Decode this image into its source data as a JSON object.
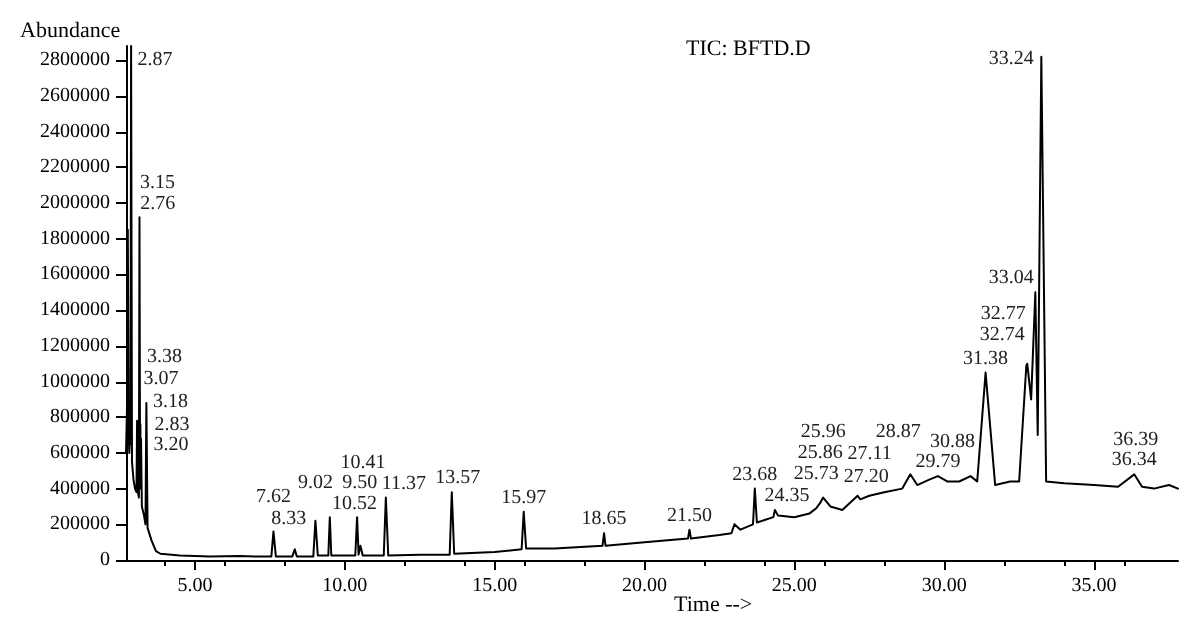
{
  "chart_data": {
    "type": "line",
    "title": "TIC: BFTD.D",
    "xlabel": "Time -->",
    "ylabel": "Abundance",
    "x": [
      2.7,
      2.74,
      2.76,
      2.79,
      2.81,
      2.83,
      2.85,
      2.87,
      2.9,
      2.95,
      3.0,
      3.05,
      3.07,
      3.1,
      3.13,
      3.15,
      3.17,
      3.18,
      3.19,
      3.2,
      3.23,
      3.3,
      3.35,
      3.38,
      3.42,
      3.55,
      3.7,
      3.85,
      4.5,
      5.5,
      6.5,
      7.0,
      7.55,
      7.62,
      7.7,
      8.25,
      8.33,
      8.4,
      8.95,
      9.02,
      9.1,
      9.45,
      9.5,
      9.55,
      10.35,
      10.41,
      10.46,
      10.52,
      10.6,
      11.3,
      11.37,
      11.45,
      12.5,
      13.5,
      13.57,
      13.65,
      15.0,
      15.9,
      15.97,
      16.05,
      17.0,
      18.6,
      18.65,
      18.7,
      20.0,
      21.45,
      21.5,
      21.55,
      22.5,
      22.9,
      23.0,
      23.2,
      23.62,
      23.68,
      23.75,
      24.3,
      24.35,
      24.45,
      25.0,
      25.5,
      25.73,
      25.86,
      25.96,
      26.2,
      26.6,
      27.11,
      27.2,
      27.5,
      28.0,
      28.6,
      28.87,
      29.1,
      29.5,
      29.79,
      30.1,
      30.5,
      30.88,
      31.1,
      31.38,
      31.7,
      32.2,
      32.5,
      32.74,
      32.77,
      32.9,
      33.04,
      33.12,
      33.24,
      33.4,
      34.0,
      35.0,
      35.8,
      36.34,
      36.6,
      37.0,
      37.5,
      37.8
    ],
    "series": [
      {
        "color": "#000000",
        "values": [
          600000,
          900000,
          1850000,
          700000,
          600000,
          680000,
          650000,
          2880000,
          550000,
          450000,
          400000,
          380000,
          780000,
          380000,
          350000,
          1920000,
          400000,
          760000,
          420000,
          680000,
          300000,
          250000,
          200000,
          880000,
          180000,
          110000,
          50000,
          35000,
          25000,
          20000,
          22000,
          20000,
          20000,
          160000,
          20000,
          20000,
          60000,
          20000,
          20000,
          220000,
          25000,
          25000,
          240000,
          25000,
          25000,
          240000,
          30000,
          80000,
          25000,
          25000,
          350000,
          25000,
          30000,
          30000,
          380000,
          35000,
          45000,
          60000,
          270000,
          65000,
          65000,
          80000,
          150000,
          80000,
          100000,
          120000,
          170000,
          120000,
          140000,
          150000,
          200000,
          170000,
          200000,
          400000,
          210000,
          240000,
          280000,
          250000,
          240000,
          260000,
          290000,
          320000,
          350000,
          300000,
          280000,
          360000,
          340000,
          360000,
          380000,
          400000,
          480000,
          420000,
          450000,
          470000,
          440000,
          440000,
          470000,
          440000,
          1050000,
          420000,
          440000,
          440000,
          1090000,
          1100000,
          900000,
          1500000,
          700000,
          2820000,
          440000,
          430000,
          420000,
          410000,
          480000,
          410000,
          400000,
          420000,
          400000
        ]
      }
    ],
    "xlim": [
      2.7,
      37.8
    ],
    "xticks": [
      {
        "value": 5,
        "label": "5.00"
      },
      {
        "value": 10,
        "label": "10.00"
      },
      {
        "value": 15,
        "label": "15.00"
      },
      {
        "value": 20,
        "label": "20.00"
      },
      {
        "value": 25,
        "label": "25.00"
      },
      {
        "value": 30,
        "label": "30.00"
      },
      {
        "value": 35,
        "label": "35.00"
      }
    ],
    "ylim": [
      0,
      2880000
    ],
    "yticks": [
      0,
      200000,
      400000,
      600000,
      800000,
      1000000,
      1200000,
      1400000,
      1600000,
      1800000,
      2000000,
      2200000,
      2400000,
      2600000,
      2800000
    ],
    "grid": false,
    "marker": "none",
    "line_style": "solid",
    "annotations": [
      {
        "text": "2.87",
        "x": 2.87,
        "y": 2880000
      },
      {
        "text": "3.15",
        "x": 3.15,
        "y": 1920000
      },
      {
        "text": "2.76",
        "x": 2.76,
        "y": 1850000
      },
      {
        "text": "3.38",
        "x": 3.38,
        "y": 880000
      },
      {
        "text": "3.07",
        "x": 3.07,
        "y": 780000
      },
      {
        "text": "3.18",
        "x": 3.18,
        "y": 760000
      },
      {
        "text": "2.83",
        "x": 2.83,
        "y": 680000
      },
      {
        "text": "3.20",
        "x": 3.2,
        "y": 680000
      },
      {
        "text": "7.62",
        "x": 7.62,
        "y": 160000
      },
      {
        "text": "8.33",
        "x": 8.33,
        "y": 60000
      },
      {
        "text": "9.02",
        "x": 9.02,
        "y": 220000
      },
      {
        "text": "9.50",
        "x": 9.5,
        "y": 240000
      },
      {
        "text": "10.41",
        "x": 10.41,
        "y": 240000
      },
      {
        "text": "10.52",
        "x": 10.52,
        "y": 80000
      },
      {
        "text": "11.37",
        "x": 11.37,
        "y": 350000
      },
      {
        "text": "13.57",
        "x": 13.57,
        "y": 380000
      },
      {
        "text": "15.97",
        "x": 15.97,
        "y": 270000
      },
      {
        "text": "18.65",
        "x": 18.65,
        "y": 150000
      },
      {
        "text": "21.50",
        "x": 21.5,
        "y": 170000
      },
      {
        "text": "23.68",
        "x": 23.68,
        "y": 400000
      },
      {
        "text": "24.35",
        "x": 24.35,
        "y": 280000
      },
      {
        "text": "25.73",
        "x": 25.73,
        "y": 290000
      },
      {
        "text": "25.86",
        "x": 25.86,
        "y": 320000
      },
      {
        "text": "25.96",
        "x": 25.96,
        "y": 350000
      },
      {
        "text": "27.11",
        "x": 27.11,
        "y": 360000
      },
      {
        "text": "27.20",
        "x": 27.2,
        "y": 340000
      },
      {
        "text": "28.87",
        "x": 28.87,
        "y": 480000
      },
      {
        "text": "29.79",
        "x": 29.79,
        "y": 470000
      },
      {
        "text": "30.88",
        "x": 30.88,
        "y": 470000
      },
      {
        "text": "31.38",
        "x": 31.38,
        "y": 1050000
      },
      {
        "text": "32.74",
        "x": 32.74,
        "y": 1090000
      },
      {
        "text": "32.77",
        "x": 32.77,
        "y": 1100000
      },
      {
        "text": "33.04",
        "x": 33.04,
        "y": 1500000
      },
      {
        "text": "33.24",
        "x": 33.24,
        "y": 2820000
      },
      {
        "text": "36.34",
        "x": 36.34,
        "y": 480000
      },
      {
        "text": "36.39",
        "x": 36.39,
        "y": 480000
      }
    ]
  }
}
